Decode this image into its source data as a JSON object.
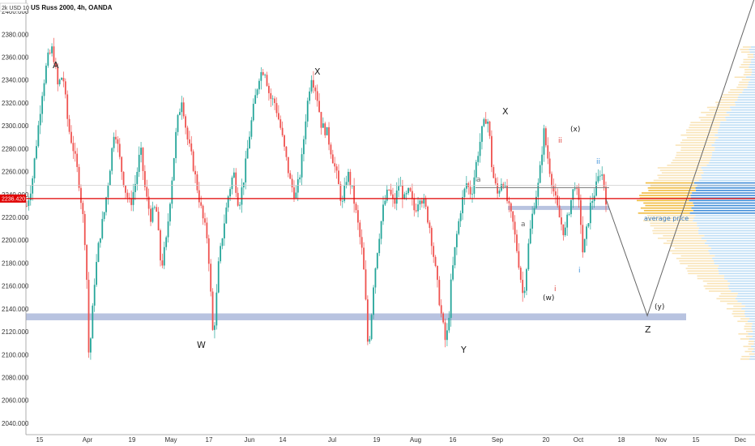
{
  "header": {
    "symbol_badge": "2k USD 10",
    "title": "US Russ 2000, 4h, OANDA"
  },
  "colors": {
    "up": "#26a69a",
    "down": "#ef5350",
    "support_band": "#b8c3e0",
    "price_line": "#e00000",
    "vp_upper": "#f7d89a",
    "vp_lower": "#a9d3f2",
    "vp_poc": "#2a7fd4",
    "vp_poc_upper": "#f0b429",
    "annotation_red": "#e0453f",
    "annotation_blue": "#3a8fd8"
  },
  "chart_data": {
    "type": "candlestick",
    "title": "US Russ 2000, 4h, OANDA",
    "ylim": [
      2030,
      2410
    ],
    "y_ticks": [
      2040,
      2060,
      2080,
      2100,
      2120,
      2140,
      2160,
      2180,
      2200,
      2220,
      2240,
      2260,
      2280,
      2300,
      2320,
      2340,
      2360,
      2380,
      2400
    ],
    "x_ticks": [
      "15",
      "Apr",
      "19",
      "May",
      "17",
      "Jun",
      "14",
      "Jul",
      "19",
      "Aug",
      "16",
      "Sep",
      "20",
      "Oct",
      "18",
      "Nov",
      "15",
      "Dec"
    ],
    "price_series": [
      [
        0,
        2230
      ],
      [
        2,
        2250
      ],
      [
        4,
        2290
      ],
      [
        6,
        2330
      ],
      [
        8,
        2358
      ],
      [
        10,
        2368
      ],
      [
        12,
        2335
      ],
      [
        14,
        2345
      ],
      [
        16,
        2300
      ],
      [
        18,
        2280
      ],
      [
        20,
        2255
      ],
      [
        22,
        2215
      ],
      [
        23,
        2185
      ],
      [
        24,
        2100
      ],
      [
        25,
        2120
      ],
      [
        26,
        2160
      ],
      [
        28,
        2200
      ],
      [
        30,
        2225
      ],
      [
        32,
        2260
      ],
      [
        34,
        2300
      ],
      [
        36,
        2270
      ],
      [
        38,
        2245
      ],
      [
        40,
        2230
      ],
      [
        42,
        2250
      ],
      [
        44,
        2280
      ],
      [
        46,
        2240
      ],
      [
        48,
        2220
      ],
      [
        50,
        2230
      ],
      [
        52,
        2175
      ],
      [
        54,
        2200
      ],
      [
        56,
        2250
      ],
      [
        58,
        2300
      ],
      [
        60,
        2325
      ],
      [
        62,
        2290
      ],
      [
        64,
        2270
      ],
      [
        66,
        2245
      ],
      [
        68,
        2220
      ],
      [
        70,
        2200
      ],
      [
        71,
        2160
      ],
      [
        72,
        2117
      ],
      [
        73,
        2135
      ],
      [
        74,
        2175
      ],
      [
        76,
        2210
      ],
      [
        78,
        2240
      ],
      [
        80,
        2260
      ],
      [
        82,
        2230
      ],
      [
        84,
        2255
      ],
      [
        86,
        2290
      ],
      [
        88,
        2320
      ],
      [
        90,
        2345
      ],
      [
        92,
        2350
      ],
      [
        94,
        2325
      ],
      [
        96,
        2320
      ],
      [
        98,
        2300
      ],
      [
        100,
        2275
      ],
      [
        102,
        2250
      ],
      [
        104,
        2238
      ],
      [
        106,
        2262
      ],
      [
        108,
        2310
      ],
      [
        110,
        2345
      ],
      [
        112,
        2330
      ],
      [
        114,
        2300
      ],
      [
        116,
        2295
      ],
      [
        118,
        2275
      ],
      [
        120,
        2255
      ],
      [
        122,
        2230
      ],
      [
        124,
        2260
      ],
      [
        126,
        2242
      ],
      [
        128,
        2215
      ],
      [
        130,
        2185
      ],
      [
        131,
        2150
      ],
      [
        132,
        2105
      ],
      [
        133,
        2125
      ],
      [
        134,
        2160
      ],
      [
        136,
        2200
      ],
      [
        138,
        2230
      ],
      [
        140,
        2245
      ],
      [
        142,
        2230
      ],
      [
        144,
        2250
      ],
      [
        146,
        2235
      ],
      [
        148,
        2243
      ],
      [
        150,
        2225
      ],
      [
        152,
        2240
      ],
      [
        154,
        2230
      ],
      [
        156,
        2210
      ],
      [
        158,
        2175
      ],
      [
        160,
        2140
      ],
      [
        162,
        2110
      ],
      [
        163,
        2125
      ],
      [
        164,
        2160
      ],
      [
        166,
        2200
      ],
      [
        168,
        2230
      ],
      [
        170,
        2250
      ],
      [
        172,
        2240
      ],
      [
        174,
        2270
      ],
      [
        176,
        2295
      ],
      [
        178,
        2310
      ],
      [
        179,
        2290
      ],
      [
        180,
        2260
      ],
      [
        182,
        2240
      ],
      [
        184,
        2255
      ],
      [
        186,
        2232
      ],
      [
        188,
        2215
      ],
      [
        190,
        2185
      ],
      [
        192,
        2150
      ],
      [
        193,
        2170
      ],
      [
        194,
        2195
      ],
      [
        196,
        2230
      ],
      [
        198,
        2250
      ],
      [
        200,
        2295
      ],
      [
        202,
        2265
      ],
      [
        204,
        2240
      ],
      [
        206,
        2220
      ],
      [
        208,
        2205
      ],
      [
        210,
        2230
      ],
      [
        212,
        2250
      ],
      [
        214,
        2225
      ],
      [
        215,
        2190
      ],
      [
        216,
        2200
      ],
      [
        218,
        2230
      ],
      [
        220,
        2245
      ],
      [
        222,
        2262
      ],
      [
        223,
        2252
      ],
      [
        224,
        2236
      ]
    ],
    "projection": [
      [
        224,
        2236
      ],
      [
        240,
        2134
      ],
      [
        270,
        2335
      ]
    ],
    "support_band": [
      2130,
      2136
    ],
    "resistance_line": 2246,
    "current_price": 2236.42,
    "current_price_label": "2236.420",
    "vp_band_label": "average price",
    "wave_labels": {
      "A": "A",
      "W": "W",
      "X1": "X",
      "Y": "Y",
      "X2": "X",
      "Z": "Z",
      "w": "(w)",
      "x": "(x)",
      "y": "(y)",
      "a1": "a",
      "a2": "a",
      "i_red": "i",
      "ii_red": "ii",
      "i_blue": "i",
      "ii_blue": "ii"
    }
  }
}
